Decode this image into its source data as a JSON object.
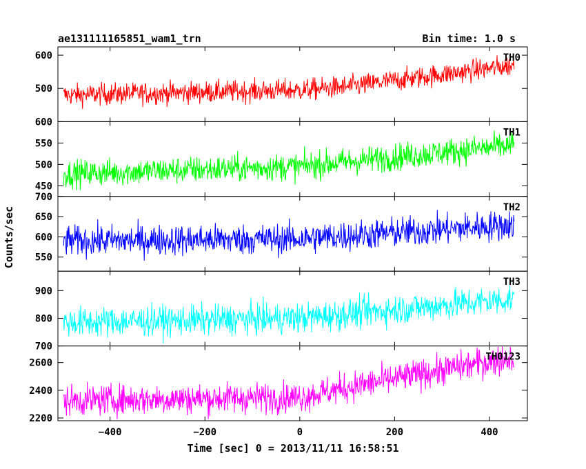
{
  "header": {
    "title": "ae131111165851_wam1_trn",
    "bin_time": "Bin time: 1.0 s"
  },
  "axes": {
    "ylabel": "Counts/sec",
    "xlabel": "Time [sec] 0 = 2013/11/11 16:58:51"
  },
  "chart_data": {
    "type": "line",
    "title": "ae131111165851_wam1_trn",
    "xlabel": "Time [sec] 0 = 2013/11/11 16:58:51",
    "ylabel": "Counts/sec",
    "xlim": [
      -510,
      480
    ],
    "x_ticks": [
      -400,
      -200,
      0,
      200,
      400
    ],
    "x_tick_labels": [
      "−400",
      "−200",
      "0",
      "200",
      "400"
    ],
    "x_range_data": [
      -498,
      452
    ],
    "panels": [
      {
        "name": "TH0",
        "color": "#ff0000",
        "ylim": [
          400,
          625
        ],
        "yticks": [
          500,
          600
        ],
        "ytick_labels": [
          "500",
          "600"
        ],
        "trend": [
          [
            -498,
            480
          ],
          [
            0,
            495
          ],
          [
            100,
            505
          ],
          [
            452,
            570
          ]
        ],
        "noise_amplitude": 33
      },
      {
        "name": "TH1",
        "color": "#00ff00",
        "ylim": [
          425,
          600
        ],
        "yticks": [
          450,
          500,
          550,
          600
        ],
        "ytick_labels": [
          "450",
          "500",
          "550",
          "600"
        ],
        "trend": [
          [
            -498,
            478
          ],
          [
            0,
            495
          ],
          [
            452,
            545
          ]
        ],
        "noise_amplitude": 32
      },
      {
        "name": "TH2",
        "color": "#0000ff",
        "ylim": [
          515,
          700
        ],
        "yticks": [
          550,
          600,
          650,
          700
        ],
        "ytick_labels": [
          "550",
          "600",
          "650",
          "700"
        ],
        "trend": [
          [
            -498,
            590
          ],
          [
            0,
            595
          ],
          [
            452,
            630
          ]
        ],
        "noise_amplitude": 38
      },
      {
        "name": "TH3",
        "color": "#00ffff",
        "ylim": [
          700,
          970
        ],
        "yticks": [
          700,
          800,
          900
        ],
        "ytick_labels": [
          "700",
          "800",
          "900"
        ],
        "trend": [
          [
            -498,
            785
          ],
          [
            0,
            800
          ],
          [
            452,
            870
          ]
        ],
        "noise_amplitude": 55
      },
      {
        "name": "TH0123",
        "color": "#ff00ff",
        "ylim": [
          2180,
          2720
        ],
        "yticks": [
          2200,
          2400,
          2600
        ],
        "ytick_labels": [
          "2200",
          "2400",
          "2600"
        ],
        "trend": [
          [
            -498,
            2325
          ],
          [
            0,
            2350
          ],
          [
            100,
            2420
          ],
          [
            452,
            2640
          ]
        ],
        "noise_amplitude": 110
      }
    ]
  }
}
